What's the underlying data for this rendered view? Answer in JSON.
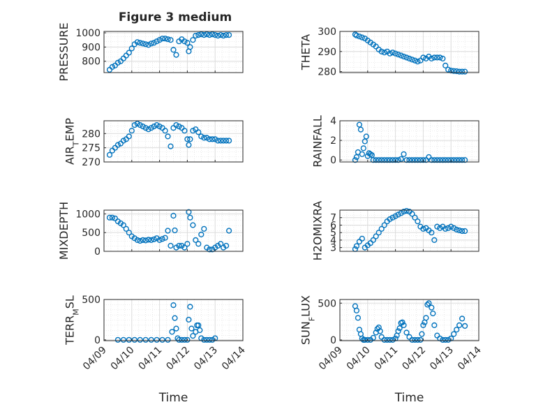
{
  "figure": {
    "title": "Figure 3 medium"
  },
  "chart_data": [
    {
      "type": "scatter",
      "title": "Figure 3 medium",
      "ylabel": "PRESSURE",
      "xlim": [
        0,
        5
      ],
      "ylim": [
        720,
        1010
      ],
      "yticks": [
        800,
        900,
        1000
      ],
      "xticks": [],
      "xlabel": "",
      "grid": true,
      "x": [
        0.2,
        0.3,
        0.4,
        0.5,
        0.6,
        0.7,
        0.8,
        0.9,
        1.0,
        1.1,
        1.2,
        1.3,
        1.4,
        1.5,
        1.6,
        1.7,
        1.8,
        1.9,
        2.0,
        2.1,
        2.2,
        2.3,
        2.4,
        2.5,
        2.6,
        2.7,
        2.8,
        2.9,
        3.0,
        3.05,
        3.1,
        3.2,
        3.3,
        3.4,
        3.5,
        3.6,
        3.7,
        3.8,
        3.9,
        4.0,
        4.1,
        4.2,
        4.3,
        4.4,
        4.5
      ],
      "y": [
        740,
        760,
        770,
        790,
        800,
        820,
        840,
        860,
        890,
        920,
        935,
        930,
        925,
        920,
        915,
        925,
        930,
        940,
        950,
        960,
        960,
        955,
        950,
        880,
        845,
        940,
        955,
        940,
        930,
        870,
        900,
        950,
        980,
        985,
        990,
        985,
        990,
        985,
        990,
        985,
        980,
        985,
        980,
        985,
        985
      ]
    },
    {
      "type": "scatter",
      "ylabel": "THETA",
      "xlim": [
        0,
        5
      ],
      "ylim": [
        279.5,
        300
      ],
      "yticks": [
        280,
        290,
        300
      ],
      "xticks": [],
      "xlabel": "",
      "grid": true,
      "x": [
        0.55,
        0.6,
        0.7,
        0.8,
        0.9,
        1.0,
        1.1,
        1.2,
        1.3,
        1.4,
        1.5,
        1.6,
        1.7,
        1.8,
        1.9,
        2.0,
        2.1,
        2.2,
        2.3,
        2.4,
        2.5,
        2.6,
        2.7,
        2.8,
        2.9,
        3.0,
        3.1,
        3.2,
        3.3,
        3.4,
        3.5,
        3.6,
        3.7,
        3.8,
        3.9,
        4.0,
        4.1,
        4.2,
        4.3,
        4.4,
        4.5
      ],
      "y": [
        298.5,
        298,
        297.5,
        297,
        296.5,
        295.5,
        294.5,
        293.5,
        292.5,
        291,
        290,
        289.5,
        290,
        289,
        289.5,
        289,
        288.5,
        288,
        287.5,
        287,
        286.5,
        286,
        285.5,
        285,
        285.5,
        287,
        286.5,
        287.5,
        286.5,
        287,
        287,
        287,
        286.5,
        283,
        281,
        280.5,
        280.3,
        280.2,
        280,
        280,
        280
      ]
    },
    {
      "type": "scatter",
      "ylabel": "AIR_TEMP",
      "xlim": [
        0,
        5
      ],
      "ylim": [
        270,
        284.5
      ],
      "yticks": [
        270,
        275,
        280
      ],
      "xticks": [],
      "xlabel": "",
      "grid": true,
      "x": [
        0.2,
        0.3,
        0.4,
        0.5,
        0.6,
        0.7,
        0.8,
        0.9,
        1.0,
        1.1,
        1.2,
        1.3,
        1.4,
        1.5,
        1.6,
        1.7,
        1.8,
        1.9,
        2.0,
        2.1,
        2.2,
        2.3,
        2.4,
        2.5,
        2.6,
        2.7,
        2.8,
        2.9,
        3.0,
        3.05,
        3.1,
        3.2,
        3.3,
        3.4,
        3.5,
        3.6,
        3.7,
        3.8,
        3.9,
        4.0,
        4.1,
        4.2,
        4.3,
        4.4,
        4.5
      ],
      "y": [
        272.5,
        274,
        275,
        276,
        276.5,
        277.5,
        278,
        279,
        281,
        283,
        283.5,
        283,
        282.5,
        282,
        281.5,
        282,
        282.5,
        283,
        282.5,
        282,
        281,
        279,
        275.5,
        282,
        283,
        282.5,
        282,
        281,
        278,
        276,
        278,
        281,
        281.5,
        280.5,
        279,
        278.5,
        278.5,
        278,
        278,
        278,
        277.5,
        277.5,
        277.5,
        277.5,
        277.5
      ]
    },
    {
      "type": "scatter",
      "ylabel": "RAINFALL",
      "xlim": [
        0,
        5
      ],
      "ylim": [
        -0.2,
        4
      ],
      "yticks": [
        0,
        2,
        4
      ],
      "xticks": [],
      "xlabel": "",
      "grid": true,
      "x": [
        0.55,
        0.6,
        0.65,
        0.7,
        0.75,
        0.8,
        0.85,
        0.9,
        0.95,
        1.0,
        1.05,
        1.1,
        1.15,
        1.2,
        1.3,
        1.4,
        1.5,
        1.6,
        1.7,
        1.8,
        1.9,
        2.0,
        2.1,
        2.2,
        2.3,
        2.4,
        2.5,
        2.6,
        2.7,
        2.8,
        2.9,
        3.0,
        3.1,
        3.2,
        3.3,
        3.4,
        3.5,
        3.6,
        3.7,
        3.8,
        3.9,
        4.0,
        4.1,
        4.2,
        4.3,
        4.4,
        4.5
      ],
      "y": [
        0,
        0.3,
        0.8,
        3.6,
        3.1,
        0.6,
        1.2,
        1.9,
        2.4,
        0.4,
        0.7,
        0.6,
        0.5,
        0,
        0,
        0,
        0,
        0,
        0,
        0,
        0,
        0,
        0,
        0.1,
        0.6,
        0,
        0,
        0,
        0,
        0,
        0,
        0,
        0,
        0.3,
        0,
        0,
        0,
        0,
        0,
        0,
        0,
        0,
        0,
        0,
        0,
        0,
        0
      ]
    },
    {
      "type": "scatter",
      "ylabel": "MIXDEPTH",
      "xlim": [
        0,
        5
      ],
      "ylim": [
        0,
        1100
      ],
      "yticks": [
        0,
        500,
        1000
      ],
      "xticks": [],
      "xlabel": "",
      "grid": true,
      "x": [
        0.2,
        0.3,
        0.4,
        0.5,
        0.6,
        0.7,
        0.8,
        0.9,
        1.0,
        1.1,
        1.2,
        1.3,
        1.4,
        1.5,
        1.6,
        1.7,
        1.8,
        1.9,
        2.0,
        2.1,
        2.2,
        2.3,
        2.4,
        2.5,
        2.55,
        2.6,
        2.7,
        2.8,
        2.9,
        3.0,
        3.05,
        3.1,
        3.2,
        3.3,
        3.4,
        3.5,
        3.6,
        3.7,
        3.8,
        3.9,
        4.0,
        4.1,
        4.2,
        4.3,
        4.4,
        4.5
      ],
      "y": [
        900,
        900,
        880,
        800,
        750,
        700,
        600,
        500,
        400,
        350,
        300,
        280,
        300,
        290,
        310,
        300,
        320,
        350,
        300,
        330,
        360,
        550,
        150,
        950,
        560,
        100,
        150,
        150,
        100,
        200,
        1050,
        900,
        700,
        300,
        200,
        450,
        600,
        100,
        50,
        50,
        100,
        150,
        200,
        100,
        150,
        550
      ]
    },
    {
      "type": "scatter",
      "ylabel": "H2OMIXRA",
      "xlim": [
        0,
        5
      ],
      "ylim": [
        2.5,
        8
      ],
      "yticks": [
        3,
        4,
        5,
        6,
        7
      ],
      "xticks": [],
      "xlabel": "",
      "grid": true,
      "x": [
        0.55,
        0.6,
        0.7,
        0.8,
        0.9,
        1.0,
        1.1,
        1.2,
        1.3,
        1.4,
        1.5,
        1.6,
        1.7,
        1.8,
        1.9,
        2.0,
        2.1,
        2.2,
        2.3,
        2.4,
        2.5,
        2.6,
        2.7,
        2.8,
        2.9,
        3.0,
        3.1,
        3.2,
        3.3,
        3.4,
        3.5,
        3.6,
        3.7,
        3.8,
        3.9,
        4.0,
        4.1,
        4.2,
        4.3,
        4.4,
        4.5
      ],
      "y": [
        2.8,
        3.2,
        3.8,
        4.2,
        3,
        3.3,
        3.6,
        4,
        4.5,
        5,
        5.5,
        6,
        6.5,
        6.8,
        7,
        7.2,
        7.4,
        7.6,
        7.8,
        7.9,
        7.8,
        7.5,
        7,
        6.5,
        5.8,
        5.5,
        5.6,
        5.3,
        5,
        4,
        5.8,
        5.6,
        5.8,
        5.5,
        5.6,
        5.8,
        5.6,
        5.4,
        5.3,
        5.2,
        5.2
      ]
    },
    {
      "type": "scatter",
      "ylabel": "TERR_MSL",
      "xlim": [
        0,
        5
      ],
      "ylim": [
        -10,
        500
      ],
      "yticks": [
        0,
        500
      ],
      "xticks": [],
      "xlabel": "",
      "grid": true,
      "x": [
        0.5,
        0.7,
        0.9,
        1.1,
        1.3,
        1.5,
        1.7,
        1.9,
        2.1,
        2.3,
        2.45,
        2.5,
        2.55,
        2.6,
        2.65,
        2.7,
        2.8,
        2.9,
        3.0,
        3.05,
        3.1,
        3.15,
        3.2,
        3.3,
        3.35,
        3.4,
        3.45,
        3.5,
        3.6,
        3.7,
        3.8,
        3.9,
        4.0
      ],
      "y": [
        0,
        0,
        0,
        0,
        0,
        0,
        0,
        0,
        0,
        0,
        100,
        430,
        270,
        140,
        20,
        0,
        0,
        0,
        0,
        250,
        410,
        140,
        50,
        100,
        180,
        180,
        120,
        20,
        0,
        0,
        0,
        0,
        20
      ]
    },
    {
      "type": "scatter",
      "ylabel": "SUN_FLUX",
      "xlim": [
        0,
        5
      ],
      "ylim": [
        -10,
        550
      ],
      "yticks": [
        0,
        500
      ],
      "xticks": [
        "04/09",
        "04/10",
        "04/11",
        "04/12",
        "04/13",
        "04/14"
      ],
      "xlabel": "Time",
      "grid": true,
      "x": [
        0.55,
        0.6,
        0.65,
        0.7,
        0.75,
        0.8,
        0.85,
        0.9,
        1.0,
        1.1,
        1.2,
        1.3,
        1.35,
        1.4,
        1.45,
        1.5,
        1.6,
        1.7,
        1.8,
        1.9,
        2.0,
        2.05,
        2.1,
        2.15,
        2.2,
        2.25,
        2.3,
        2.4,
        2.5,
        2.6,
        2.7,
        2.8,
        2.9,
        2.95,
        3.0,
        3.05,
        3.1,
        3.15,
        3.2,
        3.3,
        3.35,
        3.4,
        3.5,
        3.6,
        3.7,
        3.8,
        3.9,
        4.0,
        4.1,
        4.2,
        4.3,
        4.4,
        4.5
      ],
      "y": [
        460,
        400,
        300,
        140,
        80,
        20,
        0,
        0,
        0,
        0,
        30,
        100,
        150,
        170,
        120,
        40,
        0,
        0,
        0,
        0,
        20,
        60,
        120,
        160,
        230,
        240,
        200,
        100,
        40,
        0,
        0,
        0,
        0,
        80,
        200,
        240,
        300,
        480,
        500,
        440,
        360,
        200,
        60,
        20,
        0,
        0,
        0,
        20,
        80,
        140,
        200,
        290,
        190
      ]
    }
  ]
}
